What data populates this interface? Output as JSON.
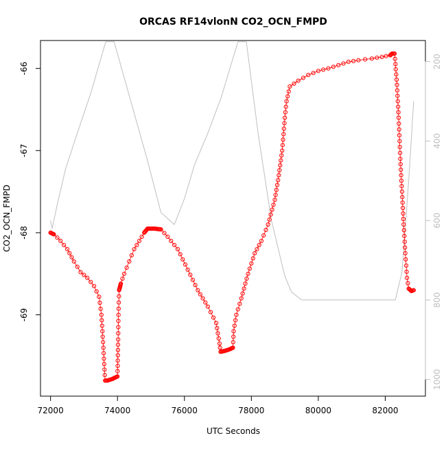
{
  "chart_data": {
    "type": "scatter",
    "title": "ORCAS RF14vlonN CO2_OCN_FMPD",
    "xlabel": "UTC Seconds",
    "ylabel": "CO2_OCN_FMPD",
    "xlim": [
      71700,
      83200
    ],
    "ylim": [
      -69.99,
      -65.66
    ],
    "y2lim": [
      1042,
      147
    ],
    "x_ticks": [
      72000,
      74000,
      76000,
      78000,
      80000,
      82000
    ],
    "x_tick_labels": [
      "72000",
      "74000",
      "76000",
      "78000",
      "80000",
      "82000"
    ],
    "y_ticks": [
      -66,
      -67,
      -68,
      -69
    ],
    "y_tick_labels": [
      "-66",
      "-67",
      "-68",
      "-69"
    ],
    "y2_ticks": [
      200,
      400,
      600,
      800,
      1000
    ],
    "y2_tick_labels": [
      "200",
      "400",
      "600",
      "800",
      "1000"
    ],
    "grid": false,
    "colors": {
      "points": "#ff0000",
      "line": "#bebebe",
      "axis": "#000000",
      "y2_axis": "#bebebe"
    },
    "series": [
      {
        "role": "points",
        "marker": "open-circle",
        "points": [
          [
            72000,
            -68.0
          ],
          [
            72100,
            -68.02
          ],
          [
            72300,
            -68.1
          ],
          [
            72500,
            -68.2
          ],
          [
            72700,
            -68.35
          ],
          [
            72900,
            -68.48
          ],
          [
            73100,
            -68.55
          ],
          [
            73300,
            -68.65
          ],
          [
            73450,
            -68.78
          ],
          [
            73520,
            -69.0
          ],
          [
            73580,
            -69.4
          ],
          [
            73630,
            -69.8
          ],
          [
            73700,
            -69.8
          ],
          [
            73850,
            -69.78
          ],
          [
            74000,
            -69.75
          ],
          [
            74020,
            -69.3
          ],
          [
            74030,
            -69.0
          ],
          [
            74050,
            -68.7
          ],
          [
            74100,
            -68.62
          ],
          [
            74200,
            -68.5
          ],
          [
            74350,
            -68.35
          ],
          [
            74500,
            -68.2
          ],
          [
            74650,
            -68.1
          ],
          [
            74800,
            -68.0
          ],
          [
            74900,
            -67.95
          ],
          [
            75100,
            -67.95
          ],
          [
            75300,
            -67.96
          ],
          [
            75500,
            -68.05
          ],
          [
            75800,
            -68.2
          ],
          [
            76100,
            -68.45
          ],
          [
            76400,
            -68.7
          ],
          [
            76700,
            -68.9
          ],
          [
            76950,
            -69.1
          ],
          [
            77050,
            -69.35
          ],
          [
            77080,
            -69.45
          ],
          [
            77200,
            -69.44
          ],
          [
            77350,
            -69.42
          ],
          [
            77450,
            -69.4
          ],
          [
            77470,
            -69.2
          ],
          [
            77550,
            -69.0
          ],
          [
            77700,
            -68.8
          ],
          [
            77900,
            -68.5
          ],
          [
            78100,
            -68.25
          ],
          [
            78300,
            -68.1
          ],
          [
            78500,
            -67.9
          ],
          [
            78700,
            -67.6
          ],
          [
            78820,
            -67.3
          ],
          [
            78920,
            -67.0
          ],
          [
            79000,
            -66.6
          ],
          [
            79050,
            -66.4
          ],
          [
            79150,
            -66.22
          ],
          [
            79400,
            -66.15
          ],
          [
            79700,
            -66.08
          ],
          [
            80000,
            -66.03
          ],
          [
            80300,
            -66.0
          ],
          [
            80600,
            -65.96
          ],
          [
            80900,
            -65.92
          ],
          [
            81200,
            -65.9
          ],
          [
            81600,
            -65.88
          ],
          [
            81900,
            -65.86
          ],
          [
            82150,
            -65.84
          ],
          [
            82200,
            -65.82
          ],
          [
            82280,
            -65.82
          ],
          [
            82350,
            -66.2
          ],
          [
            82400,
            -66.6
          ],
          [
            82450,
            -67.1
          ],
          [
            82500,
            -67.5
          ],
          [
            82550,
            -67.9
          ],
          [
            82600,
            -68.25
          ],
          [
            82650,
            -68.55
          ],
          [
            82700,
            -68.68
          ],
          [
            82780,
            -68.71
          ],
          [
            82850,
            -68.7
          ]
        ]
      },
      {
        "role": "line",
        "axis": "y2",
        "points": [
          [
            72000,
            600
          ],
          [
            72050,
            620
          ],
          [
            72100,
            600
          ],
          [
            72200,
            560
          ],
          [
            72450,
            470
          ],
          [
            72800,
            380
          ],
          [
            73200,
            280
          ],
          [
            73650,
            150
          ],
          [
            73900,
            150
          ],
          [
            74400,
            300
          ],
          [
            74900,
            450
          ],
          [
            75300,
            580
          ],
          [
            75700,
            610
          ],
          [
            76000,
            545
          ],
          [
            76300,
            460
          ],
          [
            76700,
            380
          ],
          [
            77100,
            290
          ],
          [
            77600,
            150
          ],
          [
            77850,
            150
          ],
          [
            78200,
            380
          ],
          [
            78600,
            600
          ],
          [
            79000,
            740
          ],
          [
            79200,
            780
          ],
          [
            79500,
            800
          ],
          [
            82300,
            800
          ],
          [
            82500,
            730
          ],
          [
            82700,
            500
          ],
          [
            82850,
            300
          ]
        ]
      }
    ]
  }
}
